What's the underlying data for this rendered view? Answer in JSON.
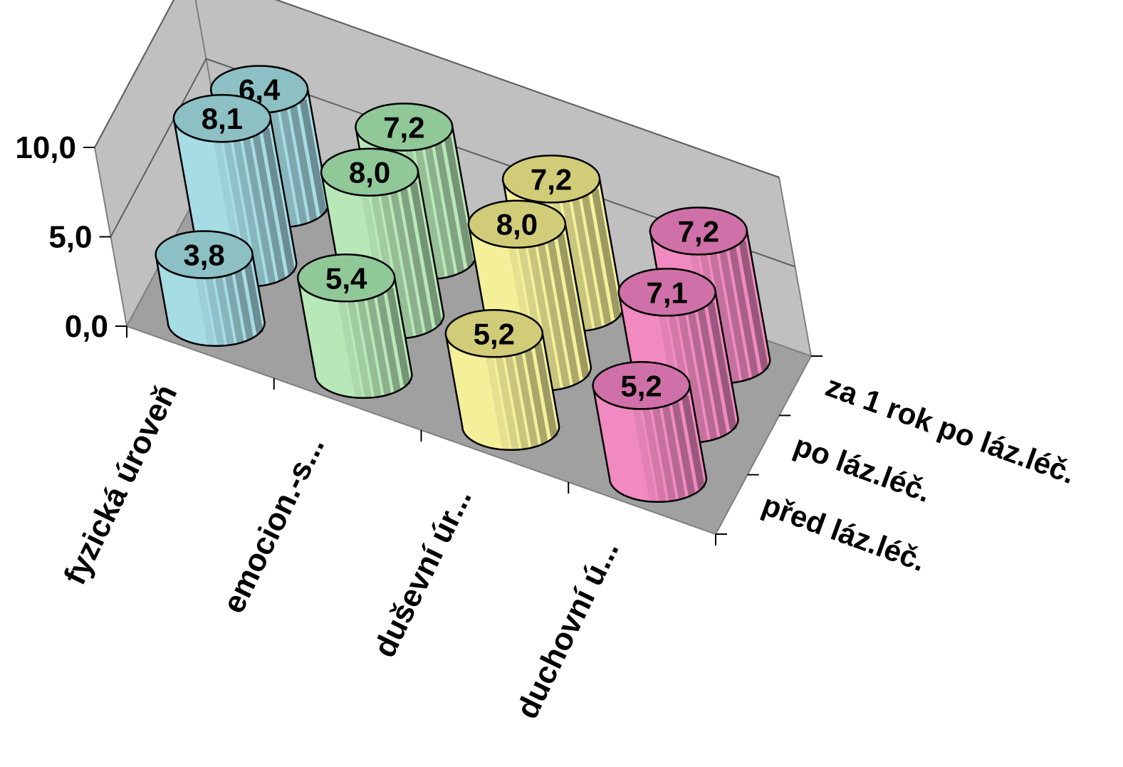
{
  "chart_data": {
    "type": "bar",
    "style": "3d-cylinder",
    "categories": [
      "fyzická úroveň",
      "emocion.-s...",
      "duševní úr...",
      "duchovní ú..."
    ],
    "series": [
      {
        "name": "před láz.léč.",
        "values": [
          3.8,
          5.4,
          5.2,
          5.2
        ]
      },
      {
        "name": "po láz.léč.",
        "values": [
          8.1,
          8.0,
          8.0,
          7.1
        ]
      },
      {
        "name": "za  1 rok po láz.léč.",
        "values": [
          6.4,
          7.2,
          7.2,
          7.2
        ]
      }
    ],
    "data_labels": [
      [
        "3,8",
        "5,4",
        "5,2",
        "5,2"
      ],
      [
        "8,1",
        "8,0",
        "8,0",
        "7,1"
      ],
      [
        "6,4",
        "7,2",
        "7,2",
        "7,2"
      ]
    ],
    "yticks": [
      "0,0",
      "5,0",
      "10,0"
    ],
    "ylim": [
      0,
      10
    ],
    "grid": true,
    "legend": "none",
    "category_colors": [
      "#a6dce4",
      "#b8e8b8",
      "#f4f09a",
      "#f08ac0"
    ],
    "cap_colors": [
      "#8cc0c4",
      "#90c898",
      "#d0cc78",
      "#d070a8"
    ],
    "wall_color": "#c0c0c0",
    "floor_color": "#a0a0a0"
  }
}
